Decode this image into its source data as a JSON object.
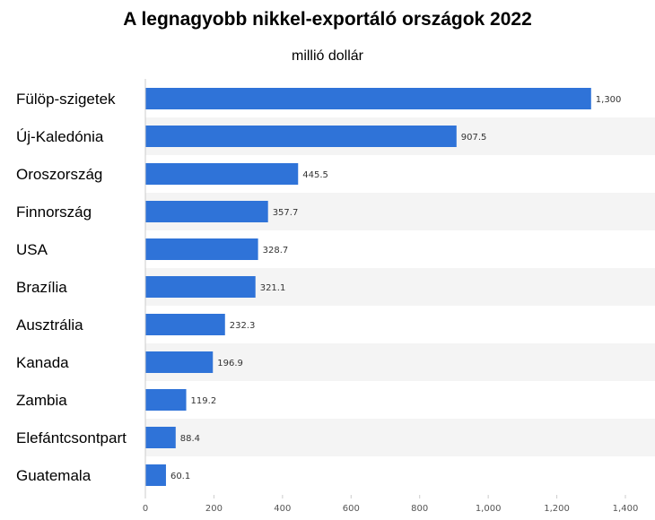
{
  "chart_data": {
    "type": "bar",
    "orientation": "horizontal",
    "title": "A legnagyobb nikkel-exportáló országok 2022",
    "subtitle": "millió dollár",
    "categories": [
      "Fülöp-szigetek",
      "Új-Kaledónia",
      "Oroszország",
      "Finnország",
      "USA",
      "Brazília",
      "Ausztrália",
      "Kanada",
      "Zambia",
      "Elefántcsontpart",
      "Guatemala"
    ],
    "values": [
      1300,
      907.5,
      445.5,
      357.7,
      328.7,
      321.1,
      232.3,
      196.9,
      119.2,
      88.4,
      60.1
    ],
    "value_labels": [
      "1,300",
      "907.5",
      "445.5",
      "357.7",
      "328.7",
      "321.1",
      "232.3",
      "196.9",
      "119.2",
      "88.4",
      "60.1"
    ],
    "xlim": [
      0,
      1400
    ],
    "x_ticks": [
      0,
      200,
      400,
      600,
      800,
      1000,
      1200,
      1400
    ],
    "x_tick_labels": [
      "0",
      "200",
      "400",
      "600",
      "800",
      "1,000",
      "1,200",
      "1,400"
    ],
    "bar_color": "#2f73d8",
    "band_color": "#f4f4f4",
    "grid": false
  }
}
